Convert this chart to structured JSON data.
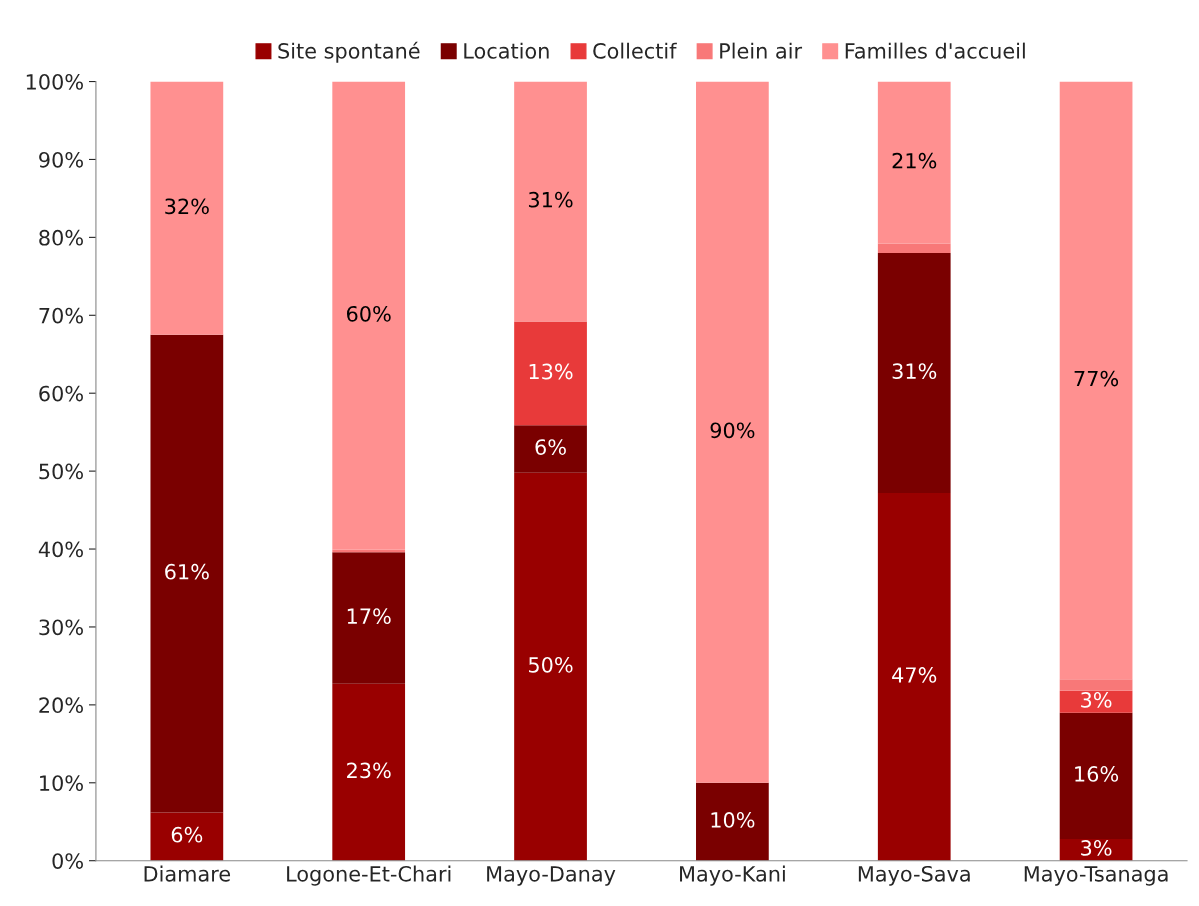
{
  "chart_data": {
    "type": "bar",
    "stacked": true,
    "categories": [
      "Diamare",
      "Logone-Et-Chari",
      "Mayo-Danay",
      "Mayo-Kani",
      "Mayo-Sava",
      "Mayo-Tsanaga"
    ],
    "series": [
      {
        "name": "Site spontané",
        "color": "#990000",
        "values": [
          6.2,
          22.7,
          49.8,
          0,
          47.2,
          2.8
        ],
        "value_labels": [
          "6%",
          "23%",
          "50%",
          null,
          "47%",
          "3%"
        ]
      },
      {
        "name": "Location",
        "color": "#7a0000",
        "values": [
          61.3,
          16.9,
          6.1,
          10,
          30.8,
          16.2
        ],
        "value_labels": [
          "61%",
          "17%",
          "6%",
          "10%",
          "31%",
          "16%"
        ]
      },
      {
        "name": "Collectif",
        "color": "#e83a3a",
        "values": [
          0,
          0,
          13.3,
          0,
          0,
          2.8
        ],
        "value_labels": [
          null,
          null,
          "13%",
          null,
          null,
          "3%"
        ]
      },
      {
        "name": "Plein air",
        "color": "#f87878",
        "values": [
          0,
          0.3,
          0,
          0,
          1.2,
          1.5
        ],
        "value_labels": [
          null,
          null,
          null,
          null,
          null,
          null
        ]
      },
      {
        "name": "Familles d'accueil",
        "color": "#ff9090",
        "values": [
          32.5,
          60.1,
          30.8,
          90,
          20.8,
          76.7
        ],
        "value_labels": [
          "32%",
          "60%",
          "31%",
          "90%",
          "21%",
          "77%"
        ]
      }
    ],
    "ylim": [
      0,
      100
    ],
    "yticks": [
      {
        "value": 0,
        "label": "0%"
      },
      {
        "value": 10,
        "label": "10%"
      },
      {
        "value": 20,
        "label": "20%"
      },
      {
        "value": 30,
        "label": "30%"
      },
      {
        "value": 40,
        "label": "40%"
      },
      {
        "value": 50,
        "label": "50%"
      },
      {
        "value": 60,
        "label": "60%"
      },
      {
        "value": 70,
        "label": "70%"
      },
      {
        "value": 80,
        "label": "80%"
      },
      {
        "value": 90,
        "label": "90%"
      },
      {
        "value": 100,
        "label": "100%"
      }
    ],
    "grid": false,
    "legend": "top"
  }
}
